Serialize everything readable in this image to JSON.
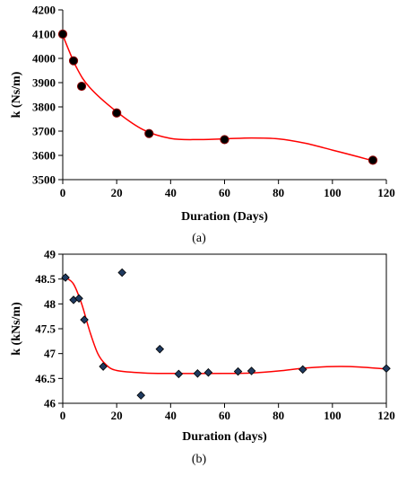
{
  "chart_data": [
    {
      "type": "scatter",
      "caption": "(a)",
      "xlabel": "Duration (Days)",
      "ylabel": "k (Ns/m)",
      "xlim": [
        0,
        120
      ],
      "ylim": [
        3500,
        4200
      ],
      "xticks": [
        "0",
        "20",
        "40",
        "60",
        "80",
        "100",
        "120"
      ],
      "yticks": [
        "3500",
        "3600",
        "3700",
        "3800",
        "3900",
        "4000",
        "4100",
        "4200"
      ],
      "grid": false,
      "legend": "none",
      "marker": "circle",
      "marker_color": "#000000",
      "marker_edge_color": "#8b0000",
      "trend_color": "#ff0000",
      "points": [
        {
          "x": 0,
          "y": 4100
        },
        {
          "x": 4,
          "y": 3990
        },
        {
          "x": 7,
          "y": 3885
        },
        {
          "x": 20,
          "y": 3775
        },
        {
          "x": 32,
          "y": 3690
        },
        {
          "x": 60,
          "y": 3665
        },
        {
          "x": 115,
          "y": 3580
        }
      ],
      "trend": [
        {
          "x": 0,
          "y": 4095
        },
        {
          "x": 5,
          "y": 3965
        },
        {
          "x": 10,
          "y": 3880
        },
        {
          "x": 20,
          "y": 3780
        },
        {
          "x": 30,
          "y": 3705
        },
        {
          "x": 40,
          "y": 3670
        },
        {
          "x": 50,
          "y": 3665
        },
        {
          "x": 60,
          "y": 3668
        },
        {
          "x": 70,
          "y": 3672
        },
        {
          "x": 80,
          "y": 3668
        },
        {
          "x": 90,
          "y": 3650
        },
        {
          "x": 100,
          "y": 3622
        },
        {
          "x": 110,
          "y": 3593
        },
        {
          "x": 115,
          "y": 3578
        }
      ]
    },
    {
      "type": "scatter",
      "caption": "(b)",
      "xlabel": "Duration (days)",
      "ylabel": "k (kNs/m)",
      "xlim": [
        0,
        120
      ],
      "ylim": [
        46,
        49
      ],
      "xticks": [
        "0",
        "20",
        "40",
        "60",
        "80",
        "100",
        "120"
      ],
      "yticks": [
        "46",
        "46.5",
        "47",
        "47.5",
        "48",
        "48.5",
        "49"
      ],
      "grid": false,
      "legend": "none",
      "marker": "diamond",
      "marker_color": "#1f3a5f",
      "marker_edge_color": "#000000",
      "trend_color": "#ff0000",
      "points": [
        {
          "x": 1,
          "y": 48.53
        },
        {
          "x": 4,
          "y": 48.08
        },
        {
          "x": 6,
          "y": 48.11
        },
        {
          "x": 8,
          "y": 47.68
        },
        {
          "x": 15,
          "y": 46.74
        },
        {
          "x": 22,
          "y": 48.63
        },
        {
          "x": 29,
          "y": 46.16
        },
        {
          "x": 36,
          "y": 47.09
        },
        {
          "x": 43,
          "y": 46.59
        },
        {
          "x": 50,
          "y": 46.6
        },
        {
          "x": 54,
          "y": 46.62
        },
        {
          "x": 65,
          "y": 46.64
        },
        {
          "x": 70,
          "y": 46.65
        },
        {
          "x": 89,
          "y": 46.68
        },
        {
          "x": 120,
          "y": 46.7
        }
      ],
      "trend": [
        {
          "x": 1,
          "y": 48.53
        },
        {
          "x": 4,
          "y": 48.4
        },
        {
          "x": 7,
          "y": 48.0
        },
        {
          "x": 10,
          "y": 47.45
        },
        {
          "x": 13,
          "y": 47.0
        },
        {
          "x": 16,
          "y": 46.78
        },
        {
          "x": 20,
          "y": 46.66
        },
        {
          "x": 30,
          "y": 46.61
        },
        {
          "x": 40,
          "y": 46.6
        },
        {
          "x": 60,
          "y": 46.6
        },
        {
          "x": 70,
          "y": 46.61
        },
        {
          "x": 80,
          "y": 46.65
        },
        {
          "x": 90,
          "y": 46.71
        },
        {
          "x": 100,
          "y": 46.74
        },
        {
          "x": 110,
          "y": 46.73
        },
        {
          "x": 120,
          "y": 46.69
        }
      ]
    }
  ]
}
